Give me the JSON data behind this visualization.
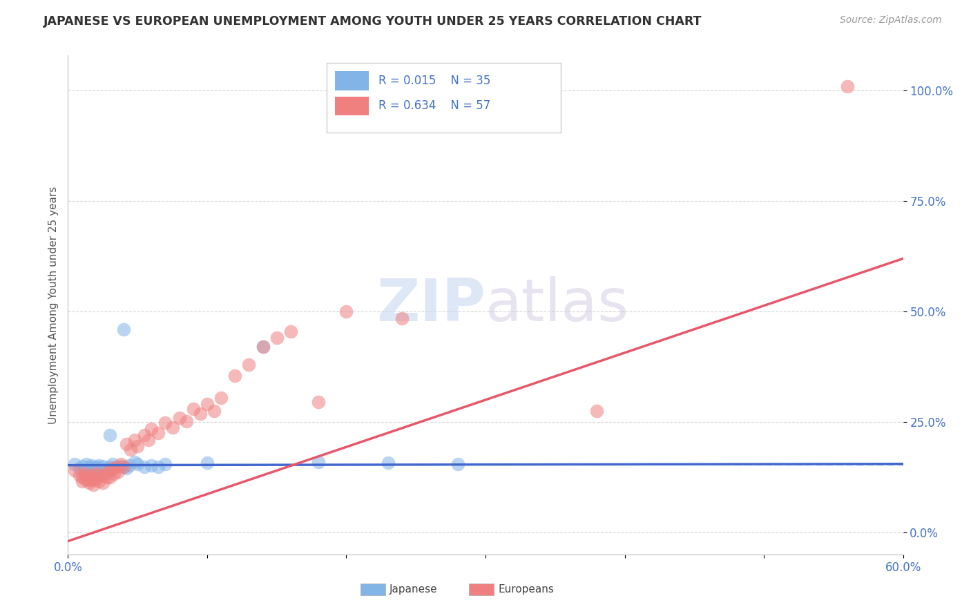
{
  "title": "JAPANESE VS EUROPEAN UNEMPLOYMENT AMONG YOUTH UNDER 25 YEARS CORRELATION CHART",
  "source": "Source: ZipAtlas.com",
  "ylabel": "Unemployment Among Youth under 25 years",
  "xlim": [
    0.0,
    0.6
  ],
  "ylim": [
    -0.05,
    1.08
  ],
  "xticks": [
    0.0,
    0.1,
    0.2,
    0.3,
    0.4,
    0.5,
    0.6
  ],
  "xticklabels": [
    "0.0%",
    "",
    "",
    "",
    "",
    "",
    "60.0%"
  ],
  "yticks": [
    0.0,
    0.25,
    0.5,
    0.75,
    1.0
  ],
  "yticklabels": [
    "0.0%",
    "25.0%",
    "50.0%",
    "75.0%",
    "100.0%"
  ],
  "legend_r1": "R = 0.015",
  "legend_n1": "N = 35",
  "legend_r2": "R = 0.634",
  "legend_n2": "N = 57",
  "color_japanese": "#82B4E8",
  "color_european": "#F08080",
  "color_line_japanese": "#4169CD",
  "color_line_european": "#E8566A",
  "watermark_zip": "ZIP",
  "watermark_atlas": "atlas",
  "background_color": "#FFFFFF",
  "grid_color": "#CCCCCC",
  "japanese_points": [
    [
      0.005,
      0.155
    ],
    [
      0.008,
      0.145
    ],
    [
      0.01,
      0.15
    ],
    [
      0.012,
      0.14
    ],
    [
      0.013,
      0.155
    ],
    [
      0.015,
      0.148
    ],
    [
      0.015,
      0.14
    ],
    [
      0.017,
      0.152
    ],
    [
      0.018,
      0.145
    ],
    [
      0.02,
      0.148
    ],
    [
      0.02,
      0.14
    ],
    [
      0.022,
      0.152
    ],
    [
      0.022,
      0.145
    ],
    [
      0.025,
      0.15
    ],
    [
      0.028,
      0.145
    ],
    [
      0.03,
      0.148
    ],
    [
      0.032,
      0.155
    ],
    [
      0.035,
      0.148
    ],
    [
      0.038,
      0.15
    ],
    [
      0.04,
      0.148
    ],
    [
      0.042,
      0.145
    ],
    [
      0.044,
      0.152
    ],
    [
      0.048,
      0.16
    ],
    [
      0.05,
      0.155
    ],
    [
      0.055,
      0.148
    ],
    [
      0.06,
      0.152
    ],
    [
      0.065,
      0.148
    ],
    [
      0.07,
      0.155
    ],
    [
      0.03,
      0.22
    ],
    [
      0.04,
      0.46
    ],
    [
      0.1,
      0.158
    ],
    [
      0.14,
      0.42
    ],
    [
      0.18,
      0.16
    ],
    [
      0.23,
      0.158
    ],
    [
      0.28,
      0.155
    ]
  ],
  "european_points": [
    [
      0.005,
      0.14
    ],
    [
      0.008,
      0.13
    ],
    [
      0.01,
      0.125
    ],
    [
      0.01,
      0.115
    ],
    [
      0.012,
      0.135
    ],
    [
      0.012,
      0.12
    ],
    [
      0.013,
      0.128
    ],
    [
      0.014,
      0.118
    ],
    [
      0.015,
      0.122
    ],
    [
      0.015,
      0.112
    ],
    [
      0.016,
      0.13
    ],
    [
      0.017,
      0.118
    ],
    [
      0.018,
      0.125
    ],
    [
      0.018,
      0.108
    ],
    [
      0.02,
      0.135
    ],
    [
      0.02,
      0.12
    ],
    [
      0.022,
      0.13
    ],
    [
      0.022,
      0.115
    ],
    [
      0.025,
      0.128
    ],
    [
      0.025,
      0.112
    ],
    [
      0.027,
      0.135
    ],
    [
      0.028,
      0.125
    ],
    [
      0.03,
      0.14
    ],
    [
      0.03,
      0.125
    ],
    [
      0.032,
      0.145
    ],
    [
      0.033,
      0.132
    ],
    [
      0.035,
      0.148
    ],
    [
      0.036,
      0.138
    ],
    [
      0.038,
      0.155
    ],
    [
      0.04,
      0.148
    ],
    [
      0.042,
      0.2
    ],
    [
      0.045,
      0.188
    ],
    [
      0.048,
      0.21
    ],
    [
      0.05,
      0.195
    ],
    [
      0.055,
      0.22
    ],
    [
      0.058,
      0.21
    ],
    [
      0.06,
      0.235
    ],
    [
      0.065,
      0.225
    ],
    [
      0.07,
      0.248
    ],
    [
      0.075,
      0.238
    ],
    [
      0.08,
      0.26
    ],
    [
      0.085,
      0.252
    ],
    [
      0.09,
      0.28
    ],
    [
      0.095,
      0.268
    ],
    [
      0.1,
      0.29
    ],
    [
      0.105,
      0.275
    ],
    [
      0.11,
      0.305
    ],
    [
      0.12,
      0.355
    ],
    [
      0.13,
      0.38
    ],
    [
      0.14,
      0.42
    ],
    [
      0.15,
      0.44
    ],
    [
      0.16,
      0.455
    ],
    [
      0.18,
      0.295
    ],
    [
      0.2,
      0.5
    ],
    [
      0.24,
      0.485
    ],
    [
      0.38,
      0.275
    ],
    [
      0.56,
      1.01
    ]
  ],
  "jap_line_x": [
    0.0,
    0.6
  ],
  "jap_line_y": [
    0.152,
    0.155
  ],
  "eur_line_x": [
    0.0,
    0.6
  ],
  "eur_line_y": [
    -0.02,
    0.62
  ]
}
